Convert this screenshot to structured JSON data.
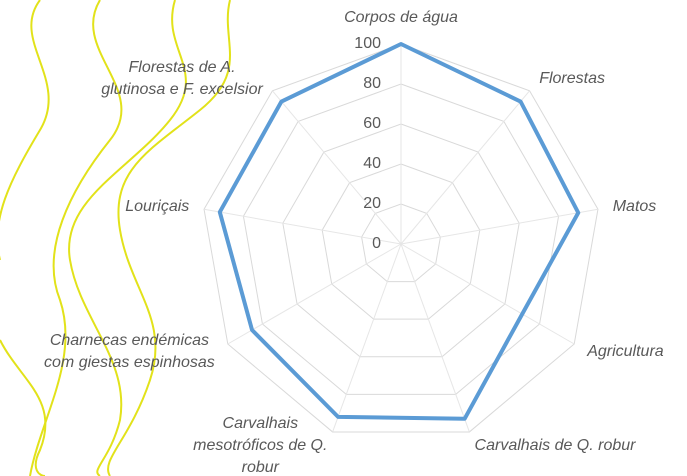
{
  "chart_data": {
    "type": "radar",
    "categories": [
      "Corpos de água",
      "Florestas",
      "Matos",
      "Agricultura",
      "Carvalhais de Q. robur",
      "Carvalhais\nmesotróficos de Q.\nrobur",
      "Charnecas endémicas\ncom giestas espinhosas",
      "Louriçais",
      "Florestas de A.\nglutinosa e F. excelsior"
    ],
    "values": [
      100,
      93,
      90,
      70,
      93,
      92,
      86,
      92,
      93
    ],
    "color": "#5b9bd5",
    "ylim": [
      0,
      100
    ],
    "yticks": [
      0,
      20,
      40,
      60,
      80,
      100
    ],
    "grid": true
  }
}
